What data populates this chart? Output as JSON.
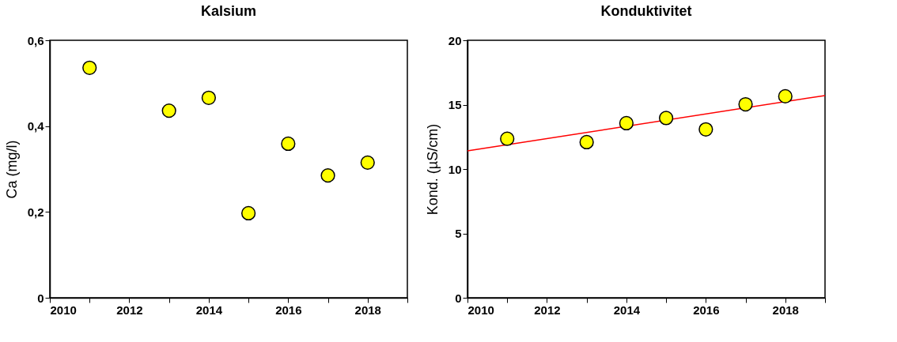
{
  "chart_data": [
    {
      "type": "scatter",
      "title": "Kalsium",
      "ylabel": "Ca (mg/l)",
      "x": [
        2011,
        2013,
        2014,
        2015,
        2016,
        2017,
        2018
      ],
      "xlim": [
        2010,
        2019
      ],
      "xticks": [
        2010,
        {
          "value": 2011,
          "label": null
        },
        2012,
        {
          "value": 2013,
          "label": null
        },
        2014,
        {
          "value": 2015,
          "label": null
        },
        2016,
        {
          "value": 2017,
          "label": null
        },
        2018,
        {
          "value": 2019,
          "label": null
        }
      ],
      "ylim": [
        0,
        0.6
      ],
      "yticks": [
        0,
        {
          "value": 0.2,
          "label": "0,2"
        },
        {
          "value": 0.4,
          "label": "0,4"
        },
        {
          "value": 0.6,
          "label": "0,6"
        }
      ],
      "grid": false,
      "legend": false,
      "series": [
        {
          "type": "scatter",
          "marker": "circle",
          "color": "#ffff00",
          "values": [
            0.536,
            0.436,
            0.466,
            0.197,
            0.359,
            0.285,
            0.315
          ]
        }
      ]
    },
    {
      "type": "scatter",
      "title": "Konduktivitet",
      "ylabel": "Kond. (µS/cm)",
      "x": [
        2011,
        2013,
        2014,
        2015,
        2016,
        2017,
        2018
      ],
      "xlim": [
        2010,
        2019
      ],
      "xticks": [
        2010,
        {
          "value": 2011,
          "label": null
        },
        2012,
        {
          "value": 2013,
          "label": null
        },
        2014,
        {
          "value": 2015,
          "label": null
        },
        2016,
        {
          "value": 2017,
          "label": null
        },
        2018,
        {
          "value": 2019,
          "label": null
        }
      ],
      "ylim": [
        0,
        20
      ],
      "yticks": [
        0,
        5,
        10,
        15,
        20
      ],
      "grid": false,
      "legend": false,
      "series": [
        {
          "type": "line",
          "line_style": "solid",
          "color": "#ff0000",
          "x": [
            2010,
            2019
          ],
          "values": [
            11.41,
            15.71
          ]
        },
        {
          "type": "scatter",
          "marker": "circle",
          "color": "#ffff00",
          "values": [
            12.35,
            12.09,
            13.56,
            13.96,
            13.08,
            15.03,
            15.65
          ]
        }
      ]
    }
  ]
}
